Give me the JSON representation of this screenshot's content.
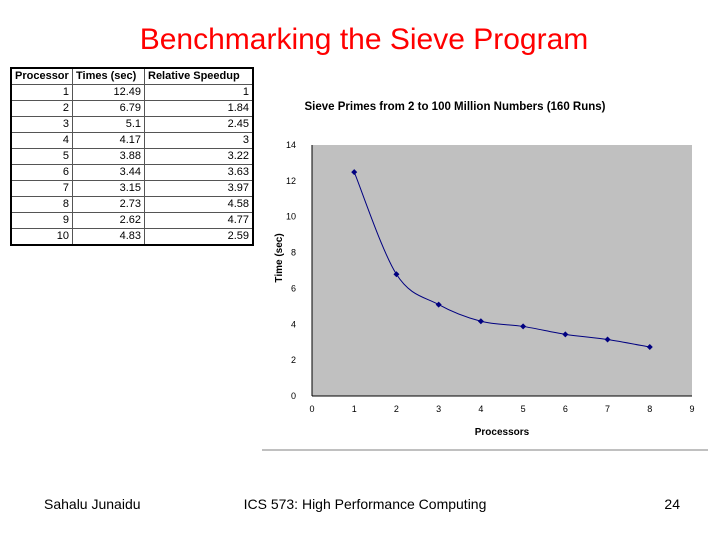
{
  "slide": {
    "title": "Benchmarking the Sieve Program",
    "footer_left": "Sahalu Junaidu",
    "footer_center": "ICS 573: High Performance Computing",
    "page_number": "24"
  },
  "table": {
    "headers": [
      "Processor",
      "Times (sec)",
      "Relative Speedup"
    ],
    "rows": [
      [
        "1",
        "12.49",
        "1"
      ],
      [
        "2",
        "6.79",
        "1.84"
      ],
      [
        "3",
        "5.1",
        "2.45"
      ],
      [
        "4",
        "4.17",
        "3"
      ],
      [
        "5",
        "3.88",
        "3.22"
      ],
      [
        "6",
        "3.44",
        "3.63"
      ],
      [
        "7",
        "3.15",
        "3.97"
      ],
      [
        "8",
        "2.73",
        "4.58"
      ],
      [
        "9",
        "2.62",
        "4.77"
      ],
      [
        "10",
        "4.83",
        "2.59"
      ]
    ]
  },
  "chart_data": {
    "type": "line",
    "title": "Sieve Primes from 2 to 100 Million Numbers (160 Runs)",
    "xlabel": "Processors",
    "ylabel": "Time (sec)",
    "x": [
      1,
      2,
      3,
      4,
      5,
      6,
      7,
      8
    ],
    "values": [
      12.49,
      6.79,
      5.1,
      4.17,
      3.88,
      3.44,
      3.15,
      2.73
    ],
    "xlim": [
      0,
      9
    ],
    "ylim": [
      0,
      14
    ],
    "xticks": [
      0,
      1,
      2,
      3,
      4,
      5,
      6,
      7,
      8,
      9
    ],
    "yticks": [
      0,
      2,
      4,
      6,
      8,
      10,
      12,
      14
    ],
    "plot_area_color": "#c0c0c0",
    "series_color": "#000080",
    "grid": false,
    "legend": "none"
  }
}
